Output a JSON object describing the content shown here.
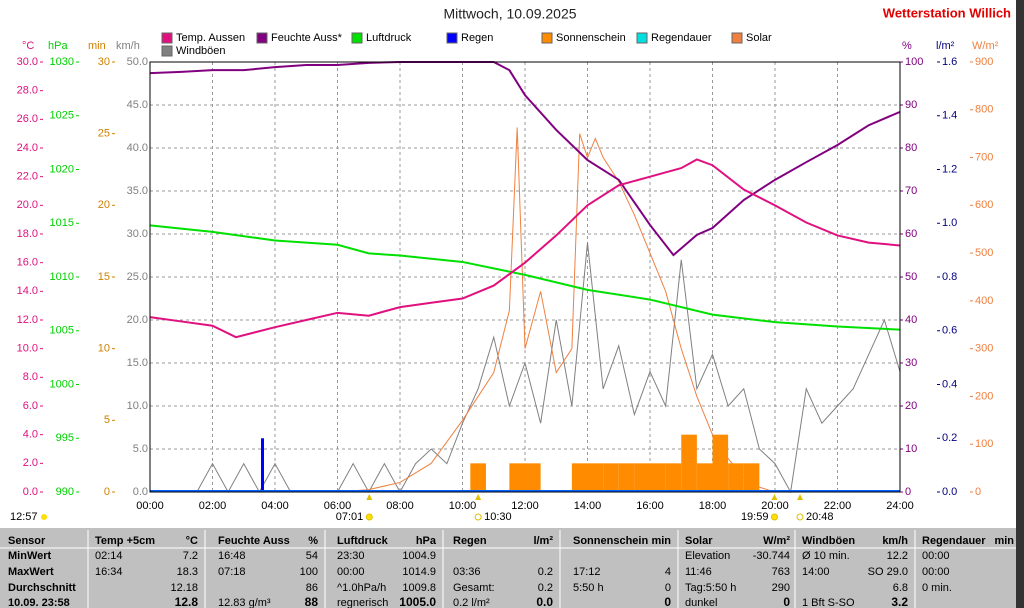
{
  "header": {
    "title": "Mittwoch, 10.09.2025",
    "station": "Wetterstation Willich"
  },
  "chart_data": {
    "type": "line",
    "xlim": [
      0,
      24
    ],
    "xticks": [
      {
        "value": 0,
        "label": "00:00"
      },
      {
        "value": 2,
        "label": "02:00"
      },
      {
        "value": 4,
        "label": "04:00"
      },
      {
        "value": 6,
        "label": "06:00"
      },
      {
        "value": 8,
        "label": "08:00"
      },
      {
        "value": 10,
        "label": "10:00"
      },
      {
        "value": 12,
        "label": "12:00"
      },
      {
        "value": 14,
        "label": "14:00"
      },
      {
        "value": 16,
        "label": "16:00"
      },
      {
        "value": 18,
        "label": "18:00"
      },
      {
        "value": 20,
        "label": "20:00"
      },
      {
        "value": 22,
        "label": "22:00"
      },
      {
        "value": 24,
        "label": "24:00"
      }
    ],
    "axes": [
      {
        "unit": "°C",
        "color": "#e0107f",
        "ylim": [
          0,
          30
        ],
        "yticks": [
          {
            "value": 0,
            "label": "0.0"
          },
          {
            "value": 2,
            "label": "2.0"
          },
          {
            "value": 4,
            "label": "4.0"
          },
          {
            "value": 6,
            "label": "6.0"
          },
          {
            "value": 8,
            "label": "8.0"
          },
          {
            "value": 10,
            "label": "10.0"
          },
          {
            "value": 12,
            "label": "12.0"
          },
          {
            "value": 14,
            "label": "14.0"
          },
          {
            "value": 16,
            "label": "16.0"
          },
          {
            "value": 18,
            "label": "18.0"
          },
          {
            "value": 20,
            "label": "20.0"
          },
          {
            "value": 22,
            "label": "22.0"
          },
          {
            "value": 24,
            "label": "24.0"
          },
          {
            "value": 26,
            "label": "26.0"
          },
          {
            "value": 28,
            "label": "28.0"
          },
          {
            "value": 30,
            "label": "30.0"
          }
        ]
      },
      {
        "unit": "hPa",
        "color": "#00d000",
        "ylim": [
          990,
          1030
        ],
        "yticks": [
          990,
          995,
          1000,
          1005,
          1010,
          1015,
          1020,
          1025,
          1030
        ]
      },
      {
        "unit": "min",
        "color": "#d08000",
        "ylim": [
          0,
          30
        ],
        "yticks": [
          0,
          5,
          10,
          15,
          20,
          25,
          30
        ]
      },
      {
        "unit": "km/h",
        "color": "#808080",
        "grid": true,
        "ylim": [
          0,
          50
        ],
        "yticks": [
          {
            "value": 0,
            "label": "0.0"
          },
          {
            "value": 5,
            "label": "5.0"
          },
          {
            "value": 10,
            "label": "10.0"
          },
          {
            "value": 15,
            "label": "15.0"
          },
          {
            "value": 20,
            "label": "20.0"
          },
          {
            "value": 25,
            "label": "25.0"
          },
          {
            "value": 30,
            "label": "30.0"
          },
          {
            "value": 35,
            "label": "35.0"
          },
          {
            "value": 40,
            "label": "40.0"
          },
          {
            "value": 45,
            "label": "45.0"
          },
          {
            "value": 50,
            "label": "50.0"
          }
        ]
      },
      {
        "unit": "%",
        "color": "#800080",
        "ylim": [
          0,
          100
        ],
        "yticks": [
          0,
          10,
          20,
          30,
          40,
          50,
          60,
          70,
          80,
          90,
          100
        ]
      },
      {
        "unit": "l/m²",
        "color": "#000080",
        "ylim": [
          0,
          1.6
        ],
        "yticks": [
          {
            "value": 0,
            "label": "0.0"
          },
          0.2,
          0.4,
          0.6,
          0.8,
          {
            "value": 1,
            "label": "1.0"
          },
          1.2,
          1.4,
          1.6
        ]
      },
      {
        "unit": "W/m²",
        "color": "#f08040",
        "ylim": [
          0,
          900
        ],
        "yticks": [
          0,
          100,
          200,
          300,
          400,
          500,
          600,
          700,
          800,
          900
        ]
      }
    ],
    "series": [
      {
        "name": "Temp. Aussen",
        "type": "line",
        "axis": 0,
        "color": "#e0107f",
        "x": [
          0,
          1,
          2,
          2.75,
          4,
          5,
          6,
          7,
          8,
          9,
          10,
          11,
          12,
          13,
          14,
          15,
          16,
          17,
          17.5,
          18,
          19,
          20,
          21,
          22,
          23,
          24
        ],
        "values": [
          12.2,
          11.9,
          11.6,
          10.8,
          11.5,
          12.0,
          12.5,
          12.3,
          12.9,
          13.2,
          13.5,
          14.4,
          16.0,
          17.9,
          20.0,
          21.4,
          22.0,
          22.6,
          23.2,
          22.8,
          21.1,
          20.0,
          18.8,
          17.9,
          17.4,
          17.2
        ]
      },
      {
        "name": "Feuchte Auss*",
        "type": "line",
        "axis": 4,
        "color": "#800080",
        "x": [
          0,
          1,
          2,
          3,
          4,
          5,
          6,
          7,
          8,
          9,
          10,
          11,
          11.5,
          12,
          13,
          14,
          15,
          16,
          16.75,
          17.5,
          18,
          19,
          20,
          21,
          22,
          23,
          24
        ],
        "values": [
          97.4,
          97.7,
          98.1,
          98.1,
          98.8,
          99.3,
          99.3,
          99.8,
          100,
          100,
          100,
          100,
          98.1,
          92.3,
          84.2,
          77.2,
          72.6,
          62.1,
          55.1,
          59.8,
          61.4,
          67.9,
          72.6,
          76.7,
          80.7,
          85.3,
          88.4
        ]
      },
      {
        "name": "Luftdruck",
        "type": "line",
        "axis": 1,
        "color": "#00e000",
        "x": [
          0,
          2,
          4,
          6,
          7,
          8,
          10,
          12,
          14,
          16,
          18,
          20,
          22,
          24
        ],
        "values": [
          1014.8,
          1014.2,
          1013.4,
          1013.0,
          1012.2,
          1012.0,
          1011.4,
          1010.2,
          1008.8,
          1007.9,
          1006.5,
          1005.8,
          1005.4,
          1005.1
        ]
      },
      {
        "name": "Regen",
        "type": "bar",
        "axis": 5,
        "color": "#0000ff",
        "x": [
          3.6
        ],
        "values": [
          0.2
        ]
      },
      {
        "name": "Sonnenschein",
        "type": "bar",
        "axis": 2,
        "color": "#ff8c00",
        "x": [
          10.5,
          11.75,
          12.25,
          13.75,
          14.25,
          14.75,
          15.25,
          15.75,
          16.25,
          16.75,
          17.25,
          17.75,
          18.25,
          18.75,
          19.25
        ],
        "values": [
          2,
          2,
          2,
          2,
          2,
          2,
          2,
          2,
          2,
          2,
          4,
          2,
          4,
          2,
          2
        ]
      },
      {
        "name": "Regendauer",
        "type": "bar",
        "axis": 2,
        "color": "#00e0e0",
        "x": [],
        "values": []
      },
      {
        "name": "Solar",
        "type": "line",
        "axis": 6,
        "color": "#f08040",
        "x": [
          0,
          6,
          7,
          8,
          9,
          10,
          10.5,
          11,
          11.5,
          11.75,
          12,
          12.5,
          13,
          13.5,
          13.75,
          14,
          14.25,
          14.5,
          15,
          15.5,
          16,
          16.5,
          17,
          17.5,
          18,
          18.5,
          19,
          19.5,
          20,
          24
        ],
        "values": [
          0,
          0,
          5,
          20,
          60,
          150,
          200,
          250,
          380,
          763,
          300,
          420,
          250,
          300,
          750,
          700,
          740,
          700,
          650,
          580,
          500,
          420,
          300,
          200,
          120,
          70,
          30,
          10,
          0,
          0
        ]
      },
      {
        "name": "Windböen",
        "type": "line",
        "axis": 3,
        "color": "#808080",
        "x": [
          0,
          0.5,
          1,
          1.5,
          2,
          2.5,
          3,
          3.5,
          4,
          4.5,
          5,
          5.5,
          6,
          6.5,
          7,
          7.5,
          8,
          8.5,
          9,
          9.5,
          10,
          10.5,
          11,
          11.5,
          12,
          12.5,
          13,
          13.5,
          14,
          14.5,
          15,
          15.5,
          16,
          16.5,
          17,
          17.5,
          18,
          18.5,
          19,
          19.5,
          20,
          20.5,
          21,
          21.5,
          22,
          22.5,
          23,
          23.5,
          24
        ],
        "values": [
          0,
          0,
          0,
          0,
          3.3,
          0,
          3.3,
          0,
          3.3,
          0,
          0,
          0,
          0,
          3.3,
          0,
          3.3,
          0,
          3.3,
          5,
          3.3,
          8,
          12,
          18,
          10,
          15,
          8,
          20,
          10,
          29,
          12,
          17,
          9,
          14,
          10,
          27,
          12,
          16,
          10,
          12,
          5,
          3.3,
          0,
          12,
          8,
          10,
          12,
          16,
          20,
          14
        ]
      }
    ],
    "day_length": "12:57",
    "events": [
      {
        "x": 7.0167,
        "label": "07:01"
      },
      {
        "x": 10.5,
        "label": "10:30"
      },
      {
        "x": 19.9833,
        "label": "19:59"
      },
      {
        "x": 20.8,
        "label": "20:48"
      }
    ]
  },
  "table": {
    "sensor": {
      "header": "Sensor",
      "rows": [
        "MinWert",
        "MaxWert",
        "Durchschnitt",
        "10.09. 23:58"
      ]
    },
    "groups": [
      {
        "header": [
          "Temp +5cm",
          "°C"
        ],
        "rows": [
          [
            "02:14",
            "7.2"
          ],
          [
            "16:34",
            "18.3"
          ],
          [
            null,
            "12.18"
          ],
          [
            null,
            "12.8"
          ]
        ]
      },
      {
        "header": [
          "Feuchte Auss",
          "%"
        ],
        "rows": [
          [
            "16:48",
            "54"
          ],
          [
            "07:18",
            "100"
          ],
          [
            null,
            "86"
          ],
          [
            "12.83 g/m³",
            "88"
          ]
        ]
      },
      {
        "header": [
          "Luftdruck",
          "hPa"
        ],
        "rows": [
          [
            "23:30",
            "1004.9"
          ],
          [
            "00:00",
            "1014.9"
          ],
          [
            "^1.0hPa/h",
            "1009.8"
          ],
          [
            "regnerisch",
            "1005.0"
          ]
        ]
      },
      {
        "header": [
          "Regen",
          "l/m²"
        ],
        "rows": [
          [
            null,
            null
          ],
          [
            "03:36",
            "0.2"
          ],
          [
            "Gesamt:",
            "0.2"
          ],
          [
            "0.2 l/m²",
            "0.0"
          ]
        ]
      },
      {
        "header": [
          "Sonnenschein",
          "min"
        ],
        "rows": [
          [
            null,
            null
          ],
          [
            "17:12",
            "4"
          ],
          [
            "5:50 h",
            "0"
          ],
          [
            null,
            "0"
          ]
        ]
      },
      {
        "header": [
          "Solar",
          "W/m²"
        ],
        "rows": [
          [
            "Elevation",
            "-30.744"
          ],
          [
            "11:46",
            "763"
          ],
          [
            "Tag:5:50 h",
            "290"
          ],
          [
            "dunkel",
            "0"
          ]
        ]
      },
      {
        "header": [
          "Windböen",
          "km/h"
        ],
        "rows": [
          [
            "Ø 10 min.",
            "12.2"
          ],
          [
            "14:00",
            "SO 29.0"
          ],
          [
            null,
            "6.8"
          ],
          [
            "1 Bft S-SO",
            "3.2"
          ]
        ]
      },
      {
        "header": [
          "Regendauer",
          "min"
        ],
        "rows": [
          [
            "00:00",
            null
          ],
          [
            "00:00",
            null
          ],
          [
            "0 min.",
            null
          ],
          [
            null,
            null
          ]
        ]
      }
    ]
  }
}
